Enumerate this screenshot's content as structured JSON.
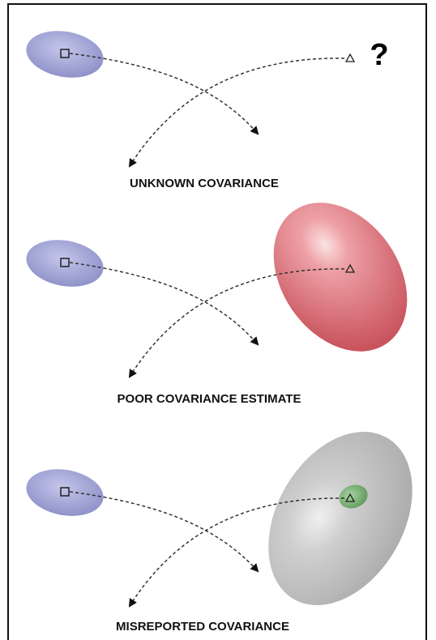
{
  "panels": [
    {
      "label": "UNKNOWN COVARIANCE",
      "annotation": "?"
    },
    {
      "label": "POOR COVARIANCE ESTIMATE"
    },
    {
      "label": "MISREPORTED COVARIANCE"
    }
  ]
}
